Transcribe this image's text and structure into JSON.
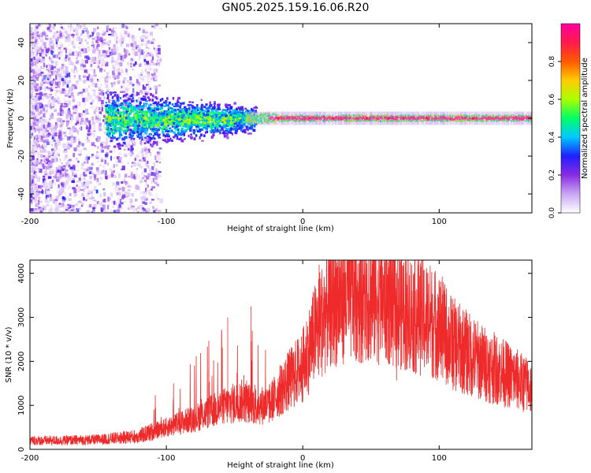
{
  "title": "GN05.2025.159.16.06.R20",
  "colors": {
    "snr_line": "#ee2a2a",
    "colorbar": [
      "#ffffff",
      "#c9a6f4",
      "#8a2be2",
      "#1f1fff",
      "#00c8ff",
      "#00ff66",
      "#aaff00",
      "#ffcc00",
      "#ff5a00",
      "#ff1a4b",
      "#ff00a0"
    ]
  },
  "chart_data": [
    {
      "type": "heatmap",
      "xlabel": "Height of straight line (km)",
      "ylabel": "Frequency (Hz)",
      "xlim": [
        -200,
        168
      ],
      "ylim": [
        -50,
        50
      ],
      "xticks": [
        -200,
        -100,
        0,
        100
      ],
      "yticks": [
        -40,
        -20,
        0,
        20,
        40
      ],
      "colorbar": {
        "label": "Normalized spectral amplitude",
        "range": [
          0,
          1
        ],
        "ticks": [
          "0.0",
          "0.2",
          "0.4",
          "0.6",
          "0.8"
        ],
        "tick_values": [
          0.0,
          0.2,
          0.4,
          0.6,
          0.8
        ]
      },
      "description_points": {
        "band_center_hz": 0,
        "broad_scatter_x_range": [
          -200,
          -110
        ],
        "concentrated_band_x_range": [
          -30,
          168
        ]
      }
    },
    {
      "type": "line",
      "xlabel": "Height of straight line (km)",
      "ylabel": "SNR (10 * v/v)",
      "xlim": [
        -200,
        168
      ],
      "ylim": [
        0,
        4300
      ],
      "xticks": [
        -200,
        -100,
        0,
        100
      ],
      "yticks": [
        0,
        1000,
        2000,
        3000,
        4000
      ],
      "envelope": {
        "x": [
          -200,
          -180,
          -150,
          -120,
          -100,
          -80,
          -60,
          -45,
          -35,
          -25,
          -15,
          0,
          10,
          20,
          30,
          40,
          50,
          60,
          70,
          80,
          90,
          100,
          110,
          130,
          150,
          168
        ],
        "y": [
          200,
          200,
          220,
          300,
          500,
          700,
          950,
          1100,
          1000,
          1000,
          1400,
          1900,
          2700,
          3300,
          3500,
          3550,
          3500,
          3450,
          3300,
          3100,
          3000,
          2800,
          2400,
          2000,
          1700,
          1400
        ]
      }
    }
  ]
}
